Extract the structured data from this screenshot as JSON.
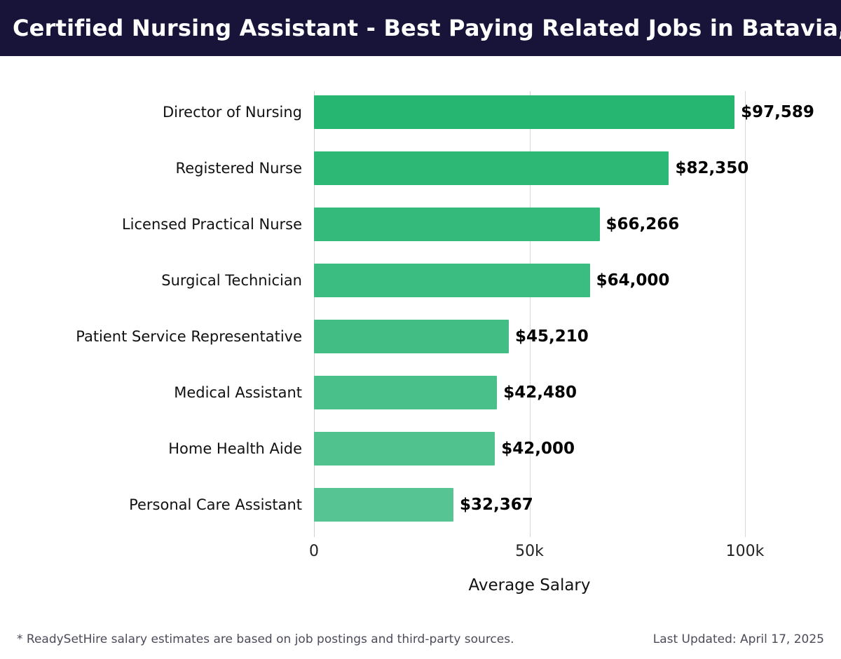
{
  "header": {
    "title": "Certified Nursing Assistant - Best Paying Related Jobs in Batavia, IL",
    "bg_color": "#171339",
    "fg_color": "#ffffff"
  },
  "chart_data": {
    "type": "bar",
    "orientation": "horizontal",
    "title": "Certified Nursing Assistant - Best Paying Related Jobs in Batavia, IL",
    "categories": [
      "Director of Nursing",
      "Registered Nurse",
      "Licensed Practical Nurse",
      "Surgical Technician",
      "Patient Service Representative",
      "Medical Assistant",
      "Home Health Aide",
      "Personal Care Assistant"
    ],
    "values": [
      97589,
      82350,
      66266,
      64000,
      45210,
      42480,
      42000,
      32367
    ],
    "value_labels": [
      "$97,589",
      "$82,350",
      "$66,266",
      "$64,000",
      "$45,210",
      "$42,480",
      "$42,000",
      "$32,367"
    ],
    "bar_colors": [
      "#26b671",
      "#2db876",
      "#34ba7b",
      "#3bbc80",
      "#42be85",
      "#49c08a",
      "#50c28e",
      "#57c593"
    ],
    "xlabel": "Average Salary",
    "xlim": [
      0,
      119000
    ],
    "ticks": [
      {
        "value": 0,
        "label": "0"
      },
      {
        "value": 50000,
        "label": "50k"
      },
      {
        "value": 100000,
        "label": "100k"
      }
    ],
    "grid": "vertical",
    "legend": "none"
  },
  "footer": {
    "disclaimer": "* ReadySetHire salary estimates are based on job postings and third-party sources.",
    "last_updated": "Last Updated: April 17, 2025"
  }
}
